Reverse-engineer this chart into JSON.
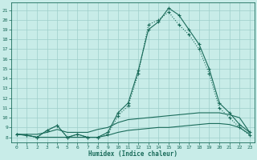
{
  "xlabel": "Humidex (Indice chaleur)",
  "bg_color": "#c8ece8",
  "grid_color": "#9ecfca",
  "line_color": "#1a6b5a",
  "hours": [
    0,
    1,
    2,
    3,
    4,
    5,
    6,
    7,
    8,
    9,
    10,
    11,
    12,
    13,
    14,
    15,
    16,
    17,
    18,
    19,
    20,
    21,
    22,
    23
  ],
  "curve_main": [
    8.3,
    8.2,
    8.0,
    8.7,
    9.2,
    8.0,
    8.3,
    8.0,
    8.0,
    8.5,
    10.5,
    11.5,
    14.8,
    19.0,
    19.8,
    21.2,
    20.5,
    19.0,
    17.5,
    15.0,
    11.5,
    10.5,
    9.3,
    8.5
  ],
  "curve_dot": [
    8.3,
    8.2,
    8.0,
    8.7,
    9.2,
    8.0,
    8.3,
    8.0,
    8.0,
    8.3,
    10.2,
    11.2,
    14.5,
    19.5,
    20.0,
    20.8,
    19.5,
    18.5,
    17.0,
    14.5,
    11.0,
    10.0,
    9.0,
    8.2
  ],
  "curve_upper": [
    8.3,
    8.3,
    8.3,
    8.5,
    8.8,
    8.5,
    8.5,
    8.5,
    8.8,
    9.0,
    9.5,
    9.8,
    9.9,
    10.0,
    10.1,
    10.2,
    10.3,
    10.4,
    10.5,
    10.5,
    10.5,
    10.3,
    10.0,
    8.5
  ],
  "curve_lower": [
    8.3,
    8.2,
    8.0,
    8.0,
    8.0,
    8.0,
    8.0,
    8.0,
    8.0,
    8.2,
    8.5,
    8.7,
    8.8,
    8.9,
    9.0,
    9.0,
    9.1,
    9.2,
    9.3,
    9.4,
    9.4,
    9.3,
    9.0,
    8.3
  ],
  "ylim": [
    7.5,
    21.8
  ],
  "xlim": [
    -0.5,
    23.5
  ],
  "yticks": [
    8,
    9,
    10,
    11,
    12,
    13,
    14,
    15,
    16,
    17,
    18,
    19,
    20,
    21
  ],
  "xticks": [
    0,
    1,
    2,
    3,
    4,
    5,
    6,
    7,
    8,
    9,
    10,
    11,
    12,
    13,
    14,
    15,
    16,
    17,
    18,
    19,
    20,
    21,
    22,
    23
  ]
}
